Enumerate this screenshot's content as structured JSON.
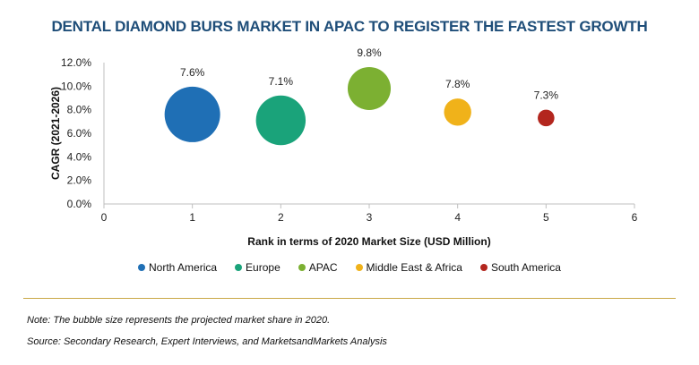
{
  "chart_data": {
    "type": "scatter",
    "title": "DENTAL DIAMOND BURS MARKET IN APAC TO REGISTER THE FASTEST GROWTH",
    "xlabel": "Rank in terms of 2020 Market Size (USD Million)",
    "ylabel": "CAGR (2021-2026)",
    "xlim": [
      0,
      6
    ],
    "ylim": [
      0,
      12
    ],
    "x_ticks": [
      "0",
      "1",
      "2",
      "3",
      "4",
      "5",
      "6"
    ],
    "y_ticks": [
      "0.0%",
      "2.0%",
      "4.0%",
      "6.0%",
      "8.0%",
      "10.0%",
      "12.0%"
    ],
    "grid": false,
    "legend_position": "bottom",
    "series": [
      {
        "name": "North America",
        "x": 1,
        "y": 7.6,
        "label": "7.6%",
        "bubble": 5,
        "color": "#1f6fb5"
      },
      {
        "name": "Europe",
        "x": 2,
        "y": 7.1,
        "label": "7.1%",
        "bubble": 4,
        "color": "#1aa37a"
      },
      {
        "name": "APAC",
        "x": 3,
        "y": 9.8,
        "label": "9.8%",
        "bubble": 3,
        "color": "#7cb032"
      },
      {
        "name": "Middle East & Africa",
        "x": 4,
        "y": 7.8,
        "label": "7.8%",
        "bubble": 1.2,
        "color": "#f0b21a"
      },
      {
        "name": "South America",
        "x": 5,
        "y": 7.3,
        "label": "7.3%",
        "bubble": 0.45,
        "color": "#b3261e"
      }
    ]
  },
  "footer": {
    "note": "Note: The bubble size represents the projected market share in 2020.",
    "source": "Source: Secondary Research, Expert Interviews, and MarketsandMarkets Analysis"
  }
}
